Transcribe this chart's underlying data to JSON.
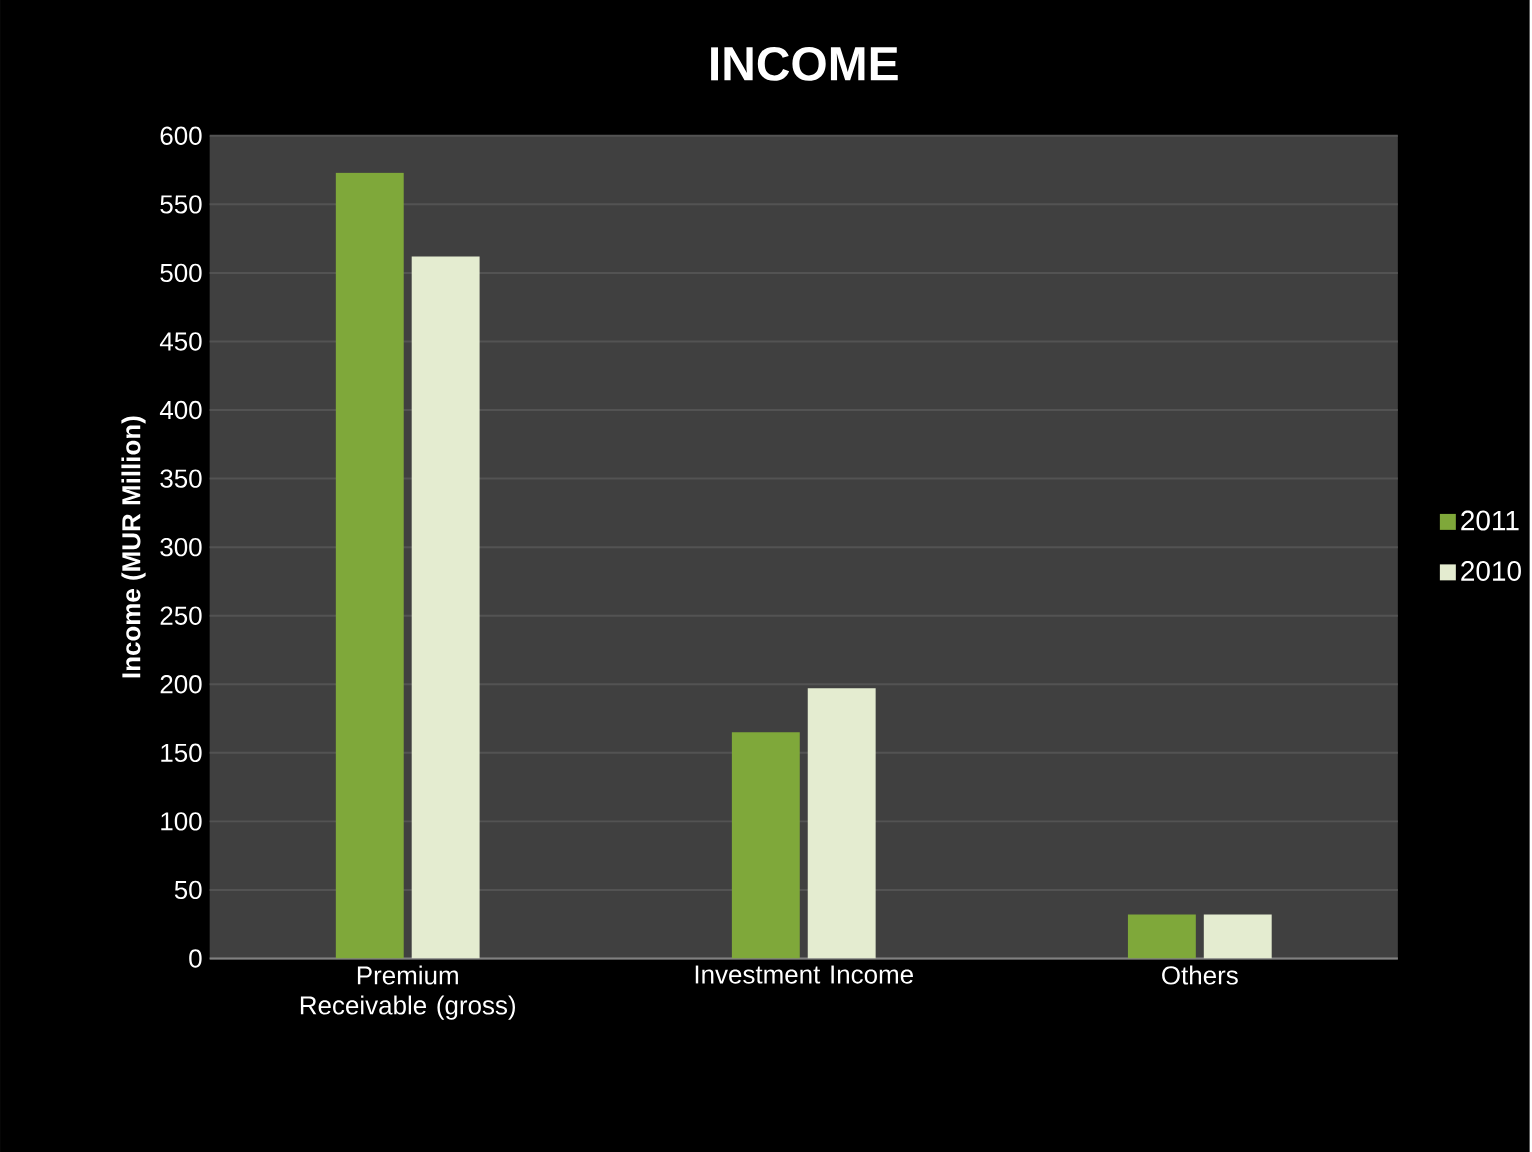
{
  "chart_data": {
    "type": "bar",
    "title": "INCOME",
    "ylabel": "Income (MUR Million)",
    "categories": [
      "Premium Receivable (gross)",
      "Investment Income",
      "Others"
    ],
    "series": [
      {
        "name": "2011",
        "color": "#7fa83a",
        "values": [
          573,
          165,
          32
        ]
      },
      {
        "name": "2010",
        "color": "#e4ecd0",
        "values": [
          512,
          197,
          32
        ]
      }
    ],
    "ylim": [
      0,
      600
    ],
    "yticks": [
      0,
      50,
      100,
      150,
      200,
      250,
      300,
      350,
      400,
      450,
      500,
      550,
      600
    ],
    "grid": "y",
    "legend": "right"
  }
}
